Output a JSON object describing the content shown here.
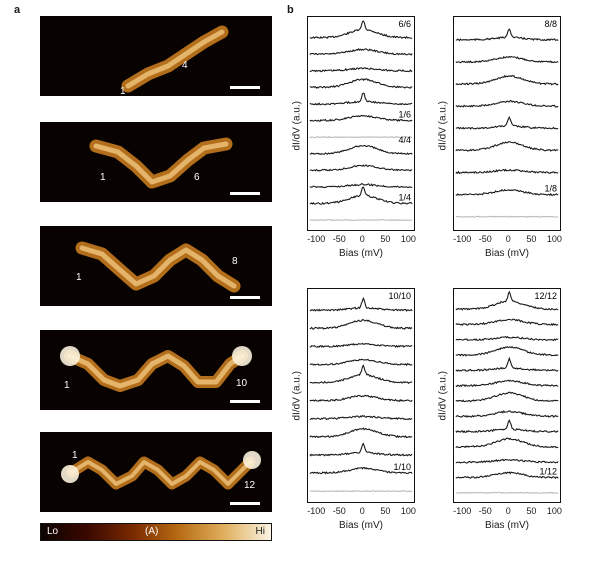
{
  "panel_a": {
    "label": "a",
    "images": [
      {
        "start_label": "1",
        "end_label": "4"
      },
      {
        "start_label": "1",
        "end_label": "6"
      },
      {
        "start_label": "1",
        "end_label": "8"
      },
      {
        "start_label": "1",
        "end_label": "10"
      },
      {
        "start_label": "1",
        "end_label": "12"
      }
    ],
    "colorbar": {
      "low": "Lo",
      "mid": "(A)",
      "high": "Hi"
    }
  },
  "panel_b": {
    "label": "b"
  },
  "chart_data": [
    {
      "type": "line",
      "ylabel": "dI/dV (a.u.)",
      "xlabel": "Bias (mV)",
      "xlim": [
        -120,
        110
      ],
      "xticks": [
        "-100",
        "-50",
        "0",
        "50",
        "100"
      ],
      "groups": [
        {
          "top_label": "6/6",
          "bottom_label": "1/6",
          "n": 6
        },
        {
          "top_label": "4/4",
          "bottom_label": "1/4",
          "n": 4
        }
      ]
    },
    {
      "type": "line",
      "ylabel": "dI/dV (a.u.)",
      "xlabel": "Bias (mV)",
      "xlim": [
        -120,
        110
      ],
      "xticks": [
        "-100",
        "-50",
        "0",
        "50",
        "100"
      ],
      "groups": [
        {
          "top_label": "8/8",
          "bottom_label": "1/8",
          "n": 8
        }
      ]
    },
    {
      "type": "line",
      "ylabel": "dI/dV (a.u.)",
      "xlabel": "Bias (mV)",
      "xlim": [
        -120,
        110
      ],
      "xticks": [
        "-100",
        "-50",
        "0",
        "50",
        "100"
      ],
      "groups": [
        {
          "top_label": "10/10",
          "bottom_label": "1/10",
          "n": 10
        }
      ]
    },
    {
      "type": "line",
      "ylabel": "dI/dV (a.u.)",
      "xlabel": "Bias (mV)",
      "xlim": [
        -120,
        110
      ],
      "xticks": [
        "-100",
        "-50",
        "0",
        "50",
        "100"
      ],
      "groups": [
        {
          "top_label": "12/12",
          "bottom_label": "1/12",
          "n": 12
        }
      ]
    }
  ]
}
